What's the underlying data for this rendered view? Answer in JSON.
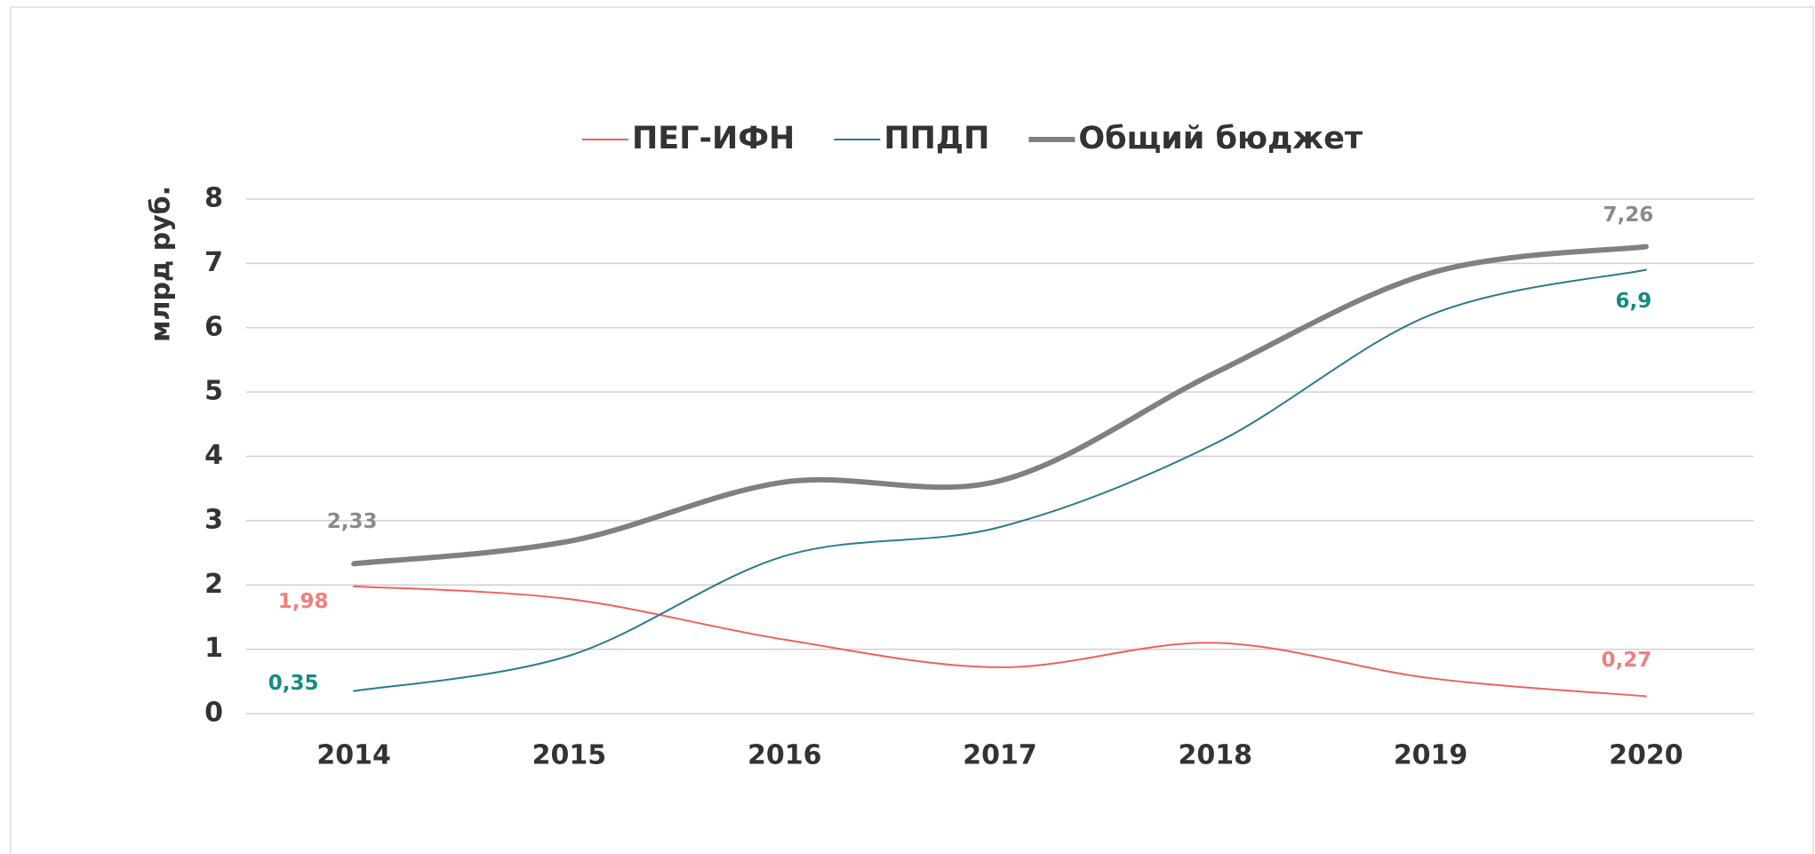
{
  "chart_data": {
    "type": "line",
    "y_label": "млрд руб.",
    "categories": [
      "2014",
      "2015",
      "2016",
      "2017",
      "2018",
      "2019",
      "2020"
    ],
    "series": [
      {
        "name": "ПЕГ-ИФН",
        "color": "#f0605d",
        "label_color": "#f27f7d",
        "width": 2,
        "values": [
          1.98,
          1.78,
          1.15,
          0.72,
          1.1,
          0.55,
          0.27
        ],
        "value_labels": [
          "1,98",
          null,
          null,
          null,
          null,
          null,
          "0,27"
        ]
      },
      {
        "name": "ППДП",
        "color": "#2b7b8a",
        "label_color": "#168a80",
        "width": 2,
        "values": [
          0.35,
          0.9,
          2.45,
          2.9,
          4.2,
          6.2,
          6.9
        ],
        "value_labels": [
          "0,35",
          null,
          null,
          null,
          null,
          null,
          "6,9"
        ]
      },
      {
        "name": "Общий бюджет",
        "color": "#808080",
        "label_color": "#8a8a8a",
        "width": 6,
        "values": [
          2.33,
          2.68,
          3.6,
          3.62,
          5.3,
          6.85,
          7.26
        ],
        "value_labels": [
          "2,33",
          null,
          null,
          null,
          null,
          null,
          "7,26"
        ]
      }
    ],
    "ylim": [
      0,
      8
    ],
    "yticks": [
      0,
      1,
      2,
      3,
      4,
      5,
      6,
      7,
      8
    ],
    "grid": true,
    "legend": "top"
  }
}
